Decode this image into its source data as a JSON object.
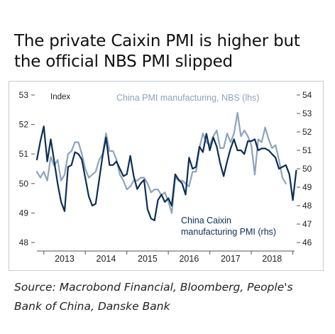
{
  "title": {
    "line1": "The private Caixin PMI is higher but",
    "line2": "the official NBS PMI slipped"
  },
  "source": {
    "line1": "Source: Macrobond Financial, Bloomberg, People's",
    "line2": "Bank of China, Danske Bank"
  },
  "colors": {
    "caixin": "#0b2e55",
    "nbs": "#8ea3bd",
    "axis": "#555555",
    "frame": "#c6ccd6"
  },
  "chart_data": {
    "type": "line",
    "index_label": "Index",
    "x_tick_labels": [
      "2013",
      "2014",
      "2015",
      "2016",
      "2017",
      "2018"
    ],
    "x_range": [
      "2012-11",
      "2018-11"
    ],
    "left_axis": {
      "range": [
        48,
        53
      ],
      "ticks": [
        48,
        49,
        50,
        51,
        52,
        53
      ],
      "tick_labels": [
        "48",
        "49",
        "50",
        "51",
        "52",
        "53"
      ]
    },
    "right_axis": {
      "range": [
        46,
        54
      ],
      "ticks": [
        46,
        47,
        48,
        49,
        50,
        51,
        52,
        53,
        54
      ],
      "tick_labels": [
        "46",
        "47",
        "48",
        "49",
        "50",
        "51",
        "52",
        "53",
        "54"
      ]
    },
    "grid": false,
    "series": [
      {
        "name": "China PMI manufacturing, NBS (lhs)",
        "axis": "left",
        "color": "#8ea3bd",
        "points": [
          [
            "2012-11",
            50.4
          ],
          [
            "2012-12",
            50.2
          ],
          [
            "2013-01",
            50.4
          ],
          [
            "2013-02",
            50.1
          ],
          [
            "2013-03",
            50.9
          ],
          [
            "2013-04",
            50.6
          ],
          [
            "2013-05",
            50.8
          ],
          [
            "2013-06",
            50.1
          ],
          [
            "2013-07",
            50.3
          ],
          [
            "2013-08",
            51.0
          ],
          [
            "2013-09",
            51.1
          ],
          [
            "2013-10",
            51.4
          ],
          [
            "2013-11",
            51.4
          ],
          [
            "2013-12",
            51.0
          ],
          [
            "2014-01",
            50.5
          ],
          [
            "2014-02",
            50.2
          ],
          [
            "2014-03",
            50.3
          ],
          [
            "2014-04",
            50.4
          ],
          [
            "2014-05",
            50.8
          ],
          [
            "2014-06",
            51.0
          ],
          [
            "2014-07",
            51.7
          ],
          [
            "2014-08",
            51.1
          ],
          [
            "2014-09",
            51.1
          ],
          [
            "2014-10",
            50.8
          ],
          [
            "2014-11",
            50.3
          ],
          [
            "2014-12",
            50.1
          ],
          [
            "2015-01",
            49.8
          ],
          [
            "2015-02",
            49.9
          ],
          [
            "2015-03",
            50.1
          ],
          [
            "2015-04",
            50.1
          ],
          [
            "2015-05",
            50.2
          ],
          [
            "2015-06",
            50.2
          ],
          [
            "2015-07",
            50.0
          ],
          [
            "2015-08",
            49.7
          ],
          [
            "2015-09",
            49.8
          ],
          [
            "2015-10",
            49.8
          ],
          [
            "2015-11",
            49.6
          ],
          [
            "2015-12",
            49.7
          ],
          [
            "2016-01",
            49.4
          ],
          [
            "2016-02",
            49.0
          ],
          [
            "2016-03",
            50.2
          ],
          [
            "2016-04",
            50.1
          ],
          [
            "2016-05",
            50.1
          ],
          [
            "2016-06",
            50.0
          ],
          [
            "2016-07",
            49.9
          ],
          [
            "2016-08",
            50.4
          ],
          [
            "2016-09",
            50.4
          ],
          [
            "2016-10",
            51.2
          ],
          [
            "2016-11",
            51.7
          ],
          [
            "2016-12",
            51.4
          ],
          [
            "2017-01",
            51.3
          ],
          [
            "2017-02",
            51.6
          ],
          [
            "2017-03",
            51.8
          ],
          [
            "2017-04",
            51.2
          ],
          [
            "2017-05",
            51.2
          ],
          [
            "2017-06",
            51.7
          ],
          [
            "2017-07",
            51.4
          ],
          [
            "2017-08",
            51.7
          ],
          [
            "2017-09",
            52.4
          ],
          [
            "2017-10",
            51.6
          ],
          [
            "2017-11",
            51.8
          ],
          [
            "2017-12",
            51.6
          ],
          [
            "2018-01",
            51.3
          ],
          [
            "2018-02",
            50.3
          ],
          [
            "2018-03",
            51.5
          ],
          [
            "2018-04",
            51.4
          ],
          [
            "2018-05",
            51.9
          ],
          [
            "2018-06",
            51.5
          ],
          [
            "2018-07",
            51.2
          ],
          [
            "2018-08",
            51.3
          ],
          [
            "2018-09",
            50.8
          ],
          [
            "2018-10",
            50.2
          ],
          [
            "2018-11",
            50.0
          ]
        ]
      },
      {
        "name": "China Caixin manufacturing PMI (rhs)",
        "axis": "right",
        "color": "#0b2e55",
        "points": [
          [
            "2012-11",
            50.5
          ],
          [
            "2012-12",
            51.5
          ],
          [
            "2013-01",
            52.3
          ],
          [
            "2013-02",
            50.4
          ],
          [
            "2013-03",
            51.6
          ],
          [
            "2013-04",
            50.4
          ],
          [
            "2013-05",
            49.2
          ],
          [
            "2013-06",
            48.2
          ],
          [
            "2013-07",
            47.7
          ],
          [
            "2013-08",
            50.1
          ],
          [
            "2013-09",
            50.2
          ],
          [
            "2013-10",
            50.9
          ],
          [
            "2013-11",
            50.8
          ],
          [
            "2013-12",
            50.5
          ],
          [
            "2014-01",
            49.5
          ],
          [
            "2014-02",
            48.5
          ],
          [
            "2014-03",
            48.0
          ],
          [
            "2014-04",
            48.1
          ],
          [
            "2014-05",
            49.4
          ],
          [
            "2014-06",
            50.7
          ],
          [
            "2014-07",
            51.7
          ],
          [
            "2014-08",
            50.2
          ],
          [
            "2014-09",
            50.2
          ],
          [
            "2014-10",
            50.4
          ],
          [
            "2014-11",
            50.0
          ],
          [
            "2014-12",
            49.6
          ],
          [
            "2015-01",
            49.7
          ],
          [
            "2015-02",
            50.7
          ],
          [
            "2015-03",
            49.6
          ],
          [
            "2015-04",
            48.9
          ],
          [
            "2015-05",
            49.2
          ],
          [
            "2015-06",
            49.4
          ],
          [
            "2015-07",
            47.8
          ],
          [
            "2015-08",
            47.3
          ],
          [
            "2015-09",
            47.2
          ],
          [
            "2015-10",
            48.3
          ],
          [
            "2015-11",
            48.6
          ],
          [
            "2015-12",
            48.2
          ],
          [
            "2016-01",
            48.4
          ],
          [
            "2016-02",
            48.0
          ],
          [
            "2016-03",
            49.7
          ],
          [
            "2016-04",
            49.4
          ],
          [
            "2016-05",
            49.2
          ],
          [
            "2016-06",
            48.6
          ],
          [
            "2016-07",
            50.6
          ],
          [
            "2016-08",
            50.0
          ],
          [
            "2016-09",
            50.1
          ],
          [
            "2016-10",
            51.2
          ],
          [
            "2016-11",
            50.9
          ],
          [
            "2016-12",
            51.9
          ],
          [
            "2017-01",
            51.0
          ],
          [
            "2017-02",
            51.7
          ],
          [
            "2017-03",
            51.2
          ],
          [
            "2017-04",
            50.3
          ],
          [
            "2017-05",
            49.6
          ],
          [
            "2017-06",
            50.4
          ],
          [
            "2017-07",
            51.1
          ],
          [
            "2017-08",
            51.6
          ],
          [
            "2017-09",
            51.0
          ],
          [
            "2017-10",
            51.0
          ],
          [
            "2017-11",
            50.8
          ],
          [
            "2017-12",
            51.5
          ],
          [
            "2018-01",
            51.5
          ],
          [
            "2018-02",
            51.6
          ],
          [
            "2018-03",
            51.0
          ],
          [
            "2018-04",
            51.1
          ],
          [
            "2018-05",
            51.1
          ],
          [
            "2018-06",
            51.0
          ],
          [
            "2018-07",
            50.8
          ],
          [
            "2018-08",
            50.6
          ],
          [
            "2018-09",
            50.0
          ],
          [
            "2018-10",
            50.1
          ],
          [
            "2018-11",
            50.2
          ],
          [
            "2018-12",
            49.7
          ],
          [
            "2019-01",
            48.3
          ],
          [
            "2019-02",
            49.9
          ]
        ]
      }
    ],
    "annotations": [
      "China PMI manufacturing, NBS (lhs)",
      "China Caixin",
      "manufacturing PMI (rhs)"
    ]
  }
}
